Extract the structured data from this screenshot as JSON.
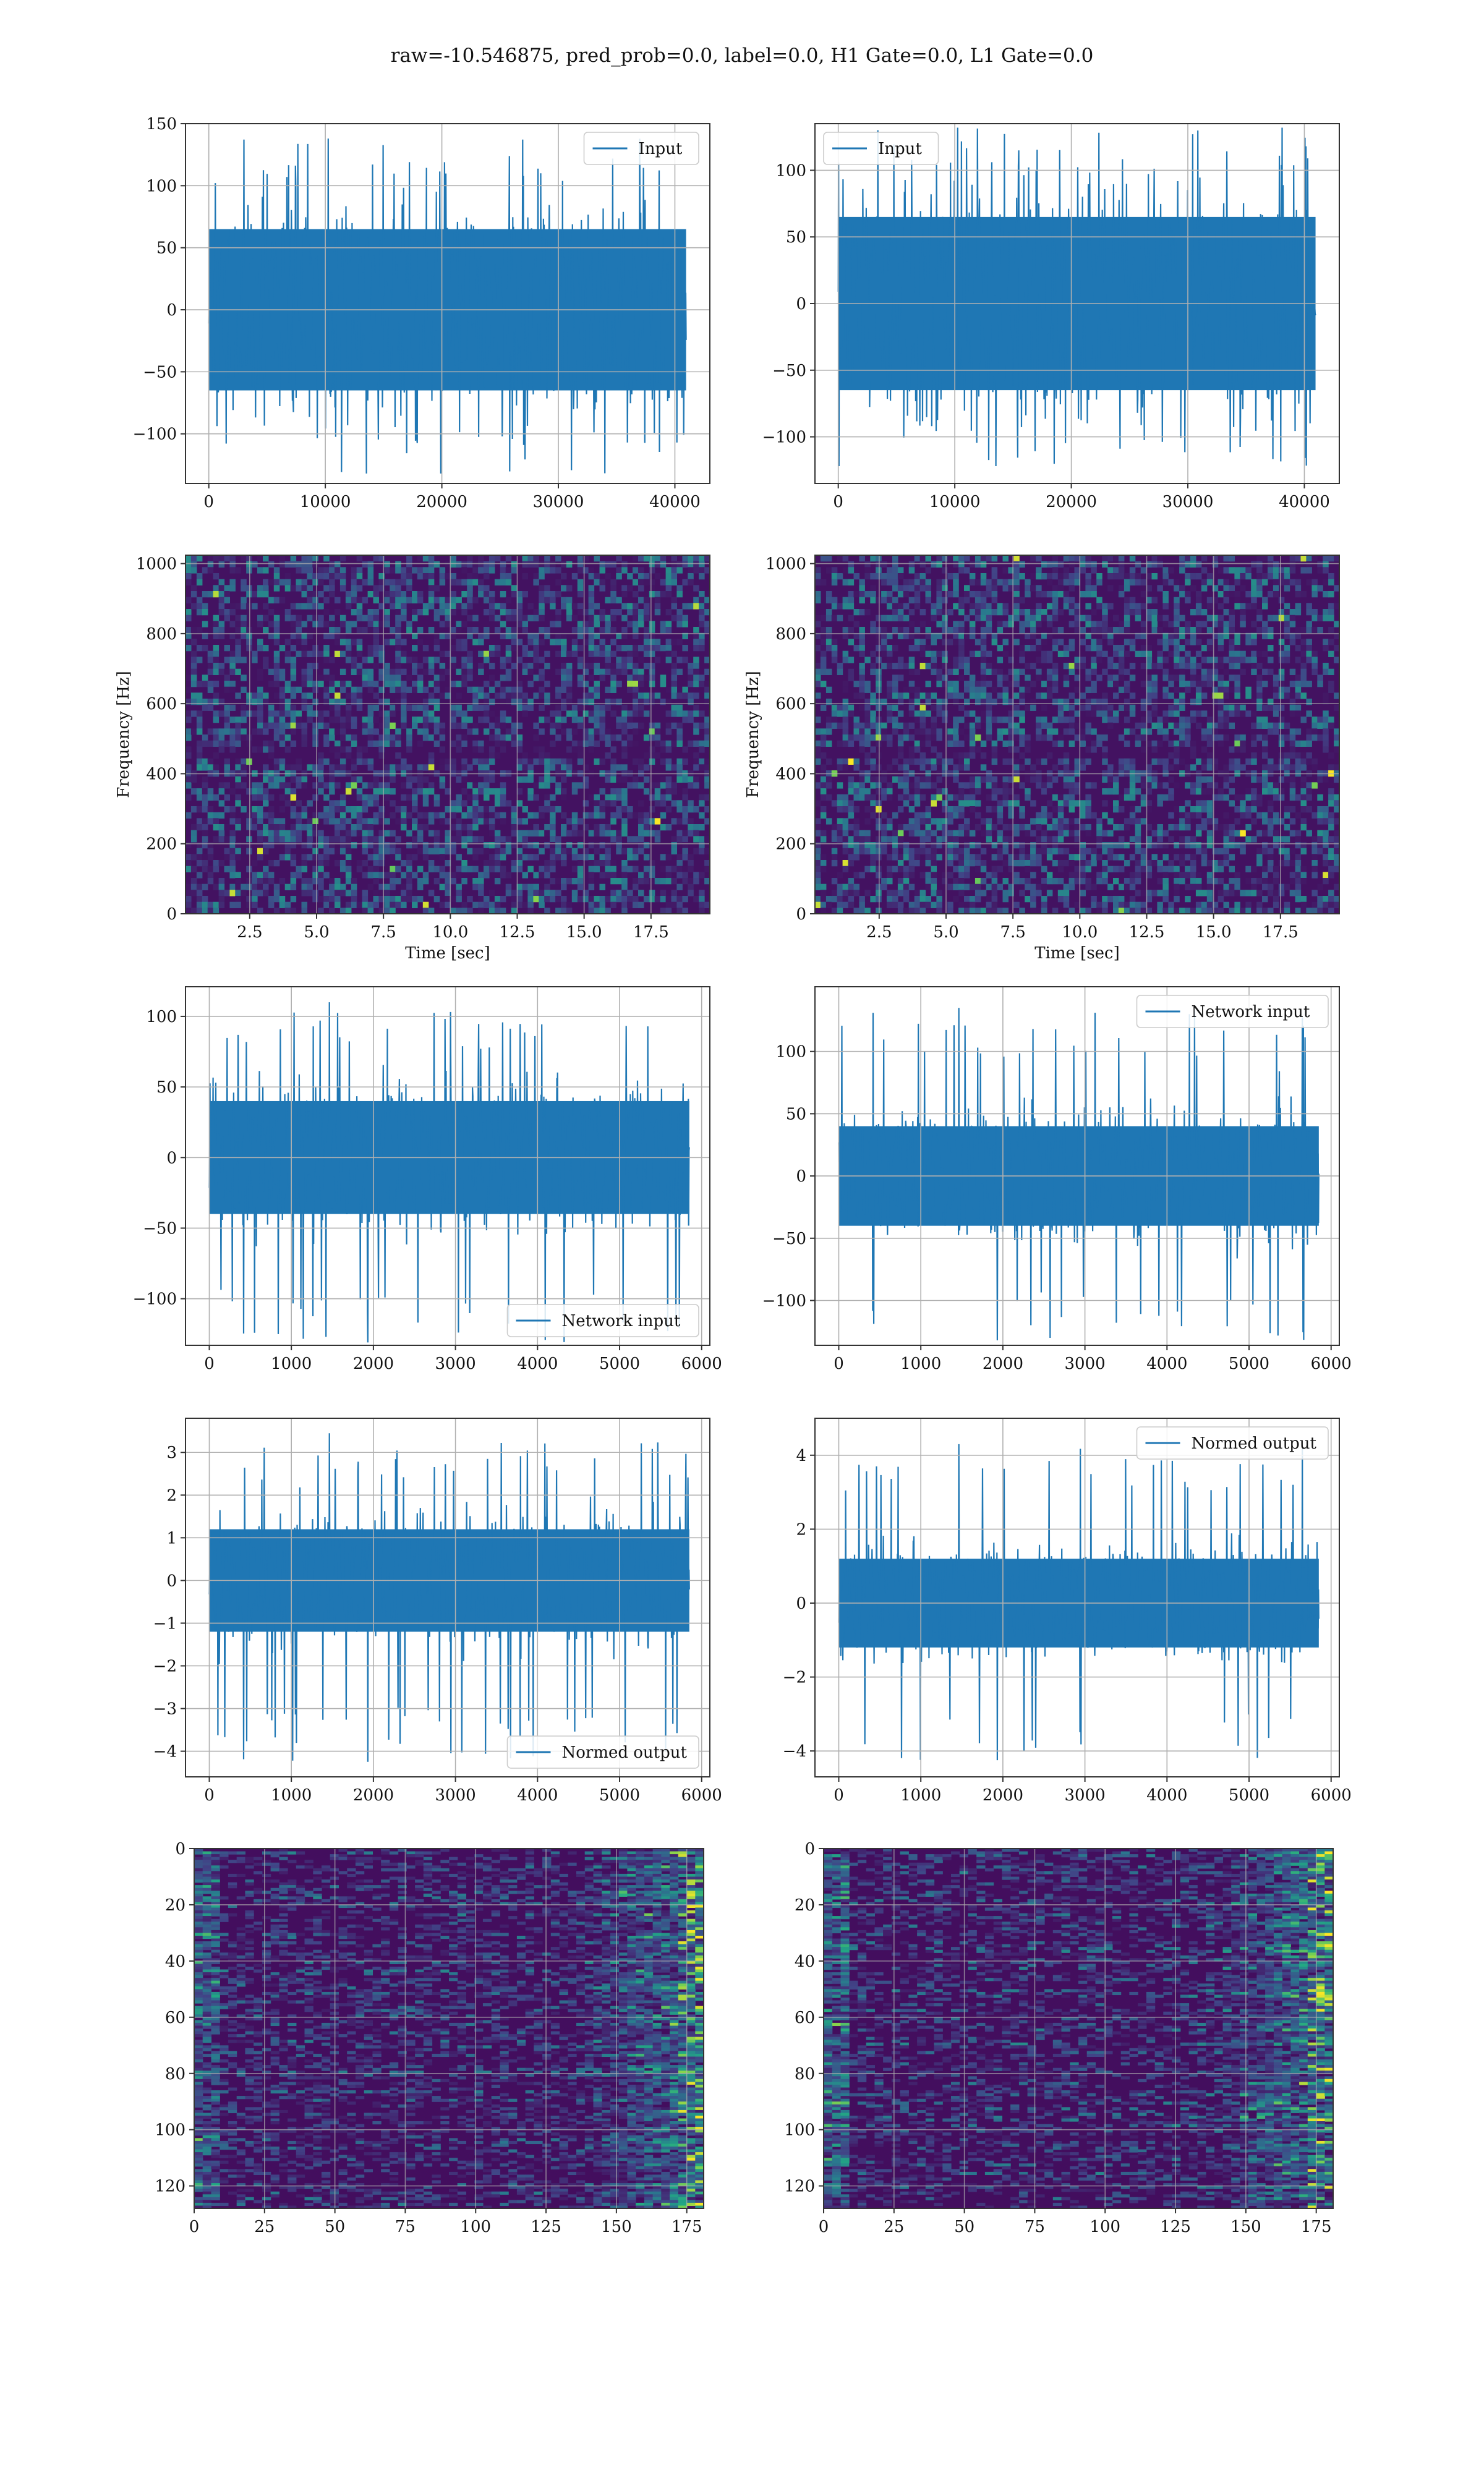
{
  "suptitle": "raw=-10.546875, pred_prob=0.0, label=0.0, H1 Gate=0.0, L1 Gate=0.0",
  "colors": {
    "line": "#1f77b4",
    "grid": "#b0b0b0",
    "frame": "#333333"
  },
  "chart_data": [
    {
      "id": "input-left",
      "type": "line",
      "series": [
        {
          "name": "Input"
        }
      ],
      "legend": "upper right",
      "xlim": [
        -2000,
        43000
      ],
      "ylim": [
        -140,
        150
      ],
      "xticks": [
        "0",
        "10000",
        "20000",
        "30000",
        "40000"
      ],
      "xtickvals": [
        0,
        10000,
        20000,
        30000,
        40000
      ],
      "yticks": [
        "−100",
        "−50",
        "0",
        "50",
        "100",
        "150"
      ],
      "ytickvals": [
        -100,
        -50,
        0,
        50,
        100,
        150
      ],
      "x_range": [
        0,
        40960
      ],
      "body_amp": 65,
      "spike_peak": 138,
      "spike_trough": -132,
      "grid": true,
      "xlabel": "",
      "ylabel": ""
    },
    {
      "id": "input-right",
      "type": "line",
      "series": [
        {
          "name": "Input"
        }
      ],
      "legend": "upper left",
      "xlim": [
        -2000,
        43000
      ],
      "ylim": [
        -135,
        135
      ],
      "xticks": [
        "0",
        "10000",
        "20000",
        "30000",
        "40000"
      ],
      "xtickvals": [
        0,
        10000,
        20000,
        30000,
        40000
      ],
      "yticks": [
        "−100",
        "−50",
        "0",
        "50",
        "100"
      ],
      "ytickvals": [
        -100,
        -50,
        0,
        50,
        100
      ],
      "x_range": [
        0,
        40960
      ],
      "body_amp": 65,
      "spike_peak": 132,
      "spike_trough": -122,
      "grid": true,
      "xlabel": "",
      "ylabel": ""
    },
    {
      "id": "spec-left",
      "type": "heatmap",
      "colormap": "viridis",
      "xlim": [
        0.1,
        19.7
      ],
      "ylim": [
        0,
        1024
      ],
      "xticks": [
        "2.5",
        "5.0",
        "7.5",
        "10.0",
        "12.5",
        "15.0",
        "17.5"
      ],
      "xtickvals": [
        2.5,
        5,
        7.5,
        10,
        12.5,
        15,
        17.5
      ],
      "yticks": [
        "0",
        "200",
        "400",
        "600",
        "800",
        "1000"
      ],
      "ytickvals": [
        0,
        200,
        400,
        600,
        800,
        1000
      ],
      "xlabel": "Time [sec]",
      "ylabel": "Frequency [Hz]",
      "grid": true
    },
    {
      "id": "spec-right",
      "type": "heatmap",
      "colormap": "viridis",
      "xlim": [
        0.1,
        19.7
      ],
      "ylim": [
        0,
        1024
      ],
      "xticks": [
        "2.5",
        "5.0",
        "7.5",
        "10.0",
        "12.5",
        "15.0",
        "17.5"
      ],
      "xtickvals": [
        2.5,
        5,
        7.5,
        10,
        12.5,
        15,
        17.5
      ],
      "yticks": [
        "0",
        "200",
        "400",
        "600",
        "800",
        "1000"
      ],
      "ytickvals": [
        0,
        200,
        400,
        600,
        800,
        1000
      ],
      "xlabel": "Time [sec]",
      "ylabel": "Frequency [Hz]",
      "grid": true
    },
    {
      "id": "network-left",
      "type": "line",
      "series": [
        {
          "name": "Network input"
        }
      ],
      "legend": "lower right",
      "xlim": [
        -290,
        6100
      ],
      "ylim": [
        -133,
        121
      ],
      "xticks": [
        "0",
        "1000",
        "2000",
        "3000",
        "4000",
        "5000",
        "6000"
      ],
      "xtickvals": [
        0,
        1000,
        2000,
        3000,
        4000,
        5000,
        6000
      ],
      "yticks": [
        "−100",
        "−50",
        "0",
        "50",
        "100"
      ],
      "ytickvals": [
        -100,
        -50,
        0,
        50,
        100
      ],
      "x_range": [
        0,
        5850
      ],
      "body_amp": 40,
      "spike_peak": 110,
      "spike_trough": -131,
      "grid": true,
      "xlabel": "",
      "ylabel": ""
    },
    {
      "id": "network-right",
      "type": "line",
      "series": [
        {
          "name": "Network input"
        }
      ],
      "legend": "upper right",
      "xlim": [
        -290,
        6100
      ],
      "ylim": [
        -136,
        152
      ],
      "xticks": [
        "0",
        "1000",
        "2000",
        "3000",
        "4000",
        "5000",
        "6000"
      ],
      "xtickvals": [
        0,
        1000,
        2000,
        3000,
        4000,
        5000,
        6000
      ],
      "yticks": [
        "−100",
        "−50",
        "0",
        "50",
        "100"
      ],
      "ytickvals": [
        -100,
        -50,
        0,
        50,
        100
      ],
      "x_range": [
        0,
        5850
      ],
      "body_amp": 40,
      "spike_peak": 135,
      "spike_trough": -132,
      "grid": true,
      "xlabel": "",
      "ylabel": ""
    },
    {
      "id": "normed-left",
      "type": "line",
      "series": [
        {
          "name": "Normed output"
        }
      ],
      "legend": "lower right",
      "xlim": [
        -290,
        6100
      ],
      "ylim": [
        -4.6,
        3.8
      ],
      "xticks": [
        "0",
        "1000",
        "2000",
        "3000",
        "4000",
        "5000",
        "6000"
      ],
      "xtickvals": [
        0,
        1000,
        2000,
        3000,
        4000,
        5000,
        6000
      ],
      "yticks": [
        "−4",
        "−3",
        "−2",
        "−1",
        "0",
        "1",
        "2",
        "3"
      ],
      "ytickvals": [
        -4,
        -3,
        -2,
        -1,
        0,
        1,
        2,
        3
      ],
      "x_range": [
        0,
        5850
      ],
      "body_amp": 1.2,
      "spike_peak": 3.45,
      "spike_trough": -4.25,
      "grid": true,
      "xlabel": "",
      "ylabel": ""
    },
    {
      "id": "normed-right",
      "type": "line",
      "series": [
        {
          "name": "Normed output"
        }
      ],
      "legend": "upper right",
      "xlim": [
        -290,
        6100
      ],
      "ylim": [
        -4.7,
        5.0
      ],
      "xticks": [
        "0",
        "1000",
        "2000",
        "3000",
        "4000",
        "5000",
        "6000"
      ],
      "xtickvals": [
        0,
        1000,
        2000,
        3000,
        4000,
        5000,
        6000
      ],
      "yticks": [
        "−4",
        "−2",
        "0",
        "2",
        "4"
      ],
      "ytickvals": [
        -4,
        -2,
        0,
        2,
        4
      ],
      "x_range": [
        0,
        5850
      ],
      "body_amp": 1.2,
      "spike_peak": 4.3,
      "spike_trough": -4.25,
      "grid": true,
      "xlabel": "",
      "ylabel": ""
    },
    {
      "id": "feature-left",
      "type": "heatmap",
      "colormap": "viridis",
      "xlim": [
        0,
        181
      ],
      "ylim": [
        128,
        0
      ],
      "xticks": [
        "0",
        "25",
        "50",
        "75",
        "100",
        "125",
        "150",
        "175"
      ],
      "xtickvals": [
        0,
        25,
        50,
        75,
        100,
        125,
        150,
        175
      ],
      "yticks": [
        "0",
        "20",
        "40",
        "60",
        "80",
        "100",
        "120"
      ],
      "ytickvals": [
        0,
        20,
        40,
        60,
        80,
        100,
        120
      ],
      "grid": true,
      "xlabel": "",
      "ylabel": ""
    },
    {
      "id": "feature-right",
      "type": "heatmap",
      "colormap": "viridis",
      "xlim": [
        0,
        181
      ],
      "ylim": [
        128,
        0
      ],
      "xticks": [
        "0",
        "25",
        "50",
        "75",
        "100",
        "125",
        "150",
        "175"
      ],
      "xtickvals": [
        0,
        25,
        50,
        75,
        100,
        125,
        150,
        175
      ],
      "yticks": [
        "0",
        "20",
        "40",
        "60",
        "80",
        "100",
        "120"
      ],
      "ytickvals": [
        0,
        20,
        40,
        60,
        80,
        100,
        120
      ],
      "grid": true,
      "xlabel": "",
      "ylabel": ""
    }
  ]
}
